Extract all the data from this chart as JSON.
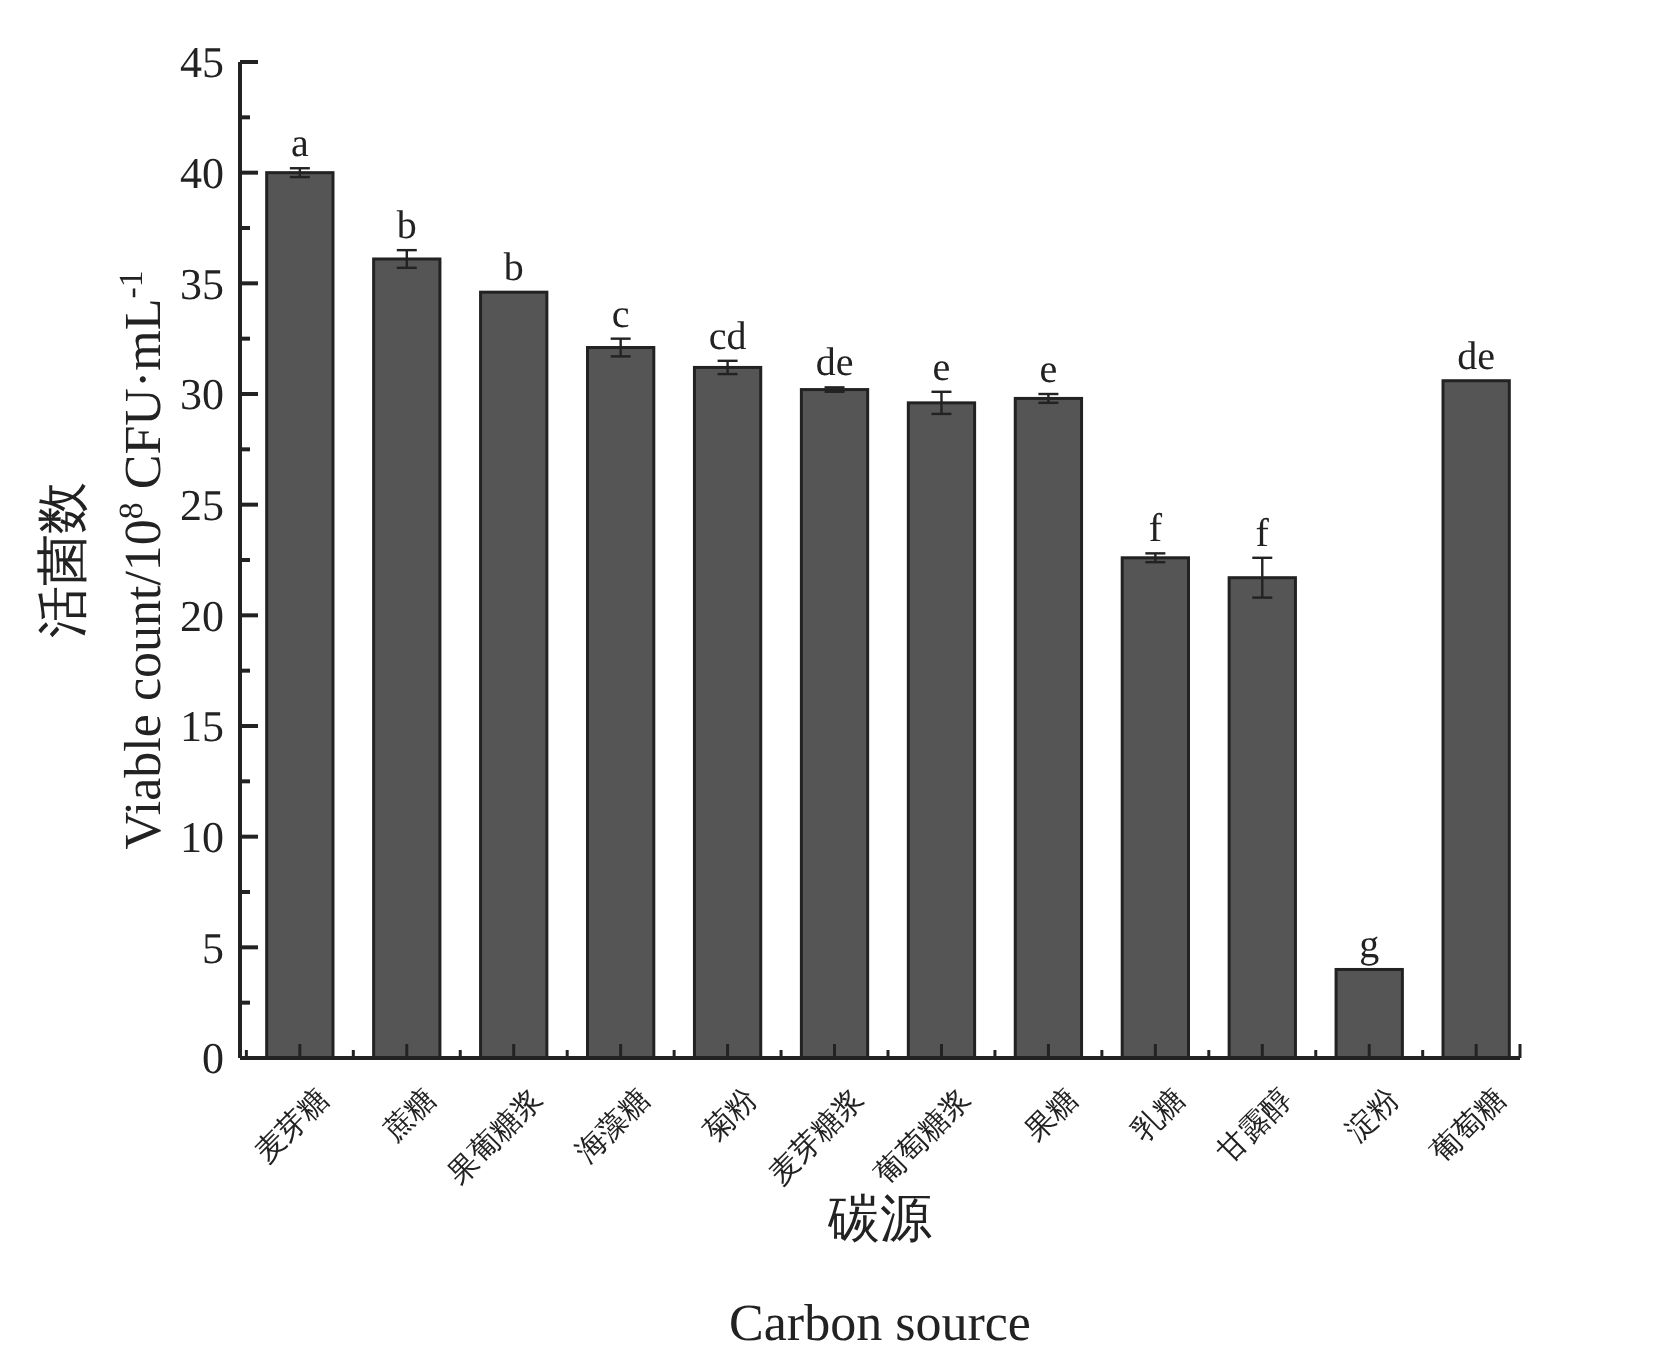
{
  "chart_data": {
    "type": "bar",
    "xlabel": "碳源\nCarbon source",
    "ylabel": "活菌数\nViable count/10$^{8}$ CFU·mL$^{-1}$",
    "categories": [
      "麦芽糖",
      "蔗糖",
      "果葡糖浆",
      "海藻糖",
      "菊粉",
      "麦芽糖浆",
      "葡萄糖浆",
      "果糖",
      "乳糖",
      "甘露醇",
      "淀粉",
      "葡萄糖"
    ],
    "values": [
      40.0,
      36.1,
      34.6,
      32.1,
      31.2,
      30.2,
      29.6,
      29.8,
      22.6,
      21.7,
      4.0,
      30.6
    ],
    "errors": [
      0.2,
      0.4,
      null,
      0.4,
      0.3,
      0.1,
      0.5,
      0.2,
      0.2,
      0.9,
      null,
      null
    ],
    "color": "#555555",
    "ylim": [
      0,
      45
    ],
    "yticks": [
      0,
      {
        "value": 2.5,
        "label": null
      },
      5,
      {
        "value": 7.5,
        "label": null
      },
      10,
      {
        "value": 12.5,
        "label": null
      },
      15,
      {
        "value": 17.5,
        "label": null
      },
      20,
      {
        "value": 22.5,
        "label": null
      },
      25,
      {
        "value": 27.5,
        "label": null
      },
      30,
      {
        "value": 32.5,
        "label": null
      },
      35,
      {
        "value": 37.5,
        "label": null
      },
      40,
      {
        "value": 42.5,
        "label": null
      },
      45
    ],
    "annotations": [
      {
        "text": "a",
        "x": "麦芽糖",
        "y": 40.2
      },
      {
        "text": "b",
        "x": "蔗糖",
        "y": 36.5
      },
      {
        "text": "b",
        "x": "果葡糖浆",
        "y": 34.6
      },
      {
        "text": "c",
        "x": "海藻糖",
        "y": 32.5
      },
      {
        "text": "cd",
        "x": "菊粉",
        "y": 31.5
      },
      {
        "text": "de",
        "x": "麦芽糖浆",
        "y": 30.3
      },
      {
        "text": "e",
        "x": "葡萄糖浆",
        "y": 30.1
      },
      {
        "text": "e",
        "x": "果糖",
        "y": 30.0
      },
      {
        "text": "f",
        "x": "乳糖",
        "y": 22.8
      },
      {
        "text": "f",
        "x": "甘露醇",
        "y": 22.6
      },
      {
        "text": "g",
        "x": "淀粉",
        "y": 4.0
      },
      {
        "text": "de",
        "x": "葡萄糖",
        "y": 30.6
      }
    ]
  }
}
